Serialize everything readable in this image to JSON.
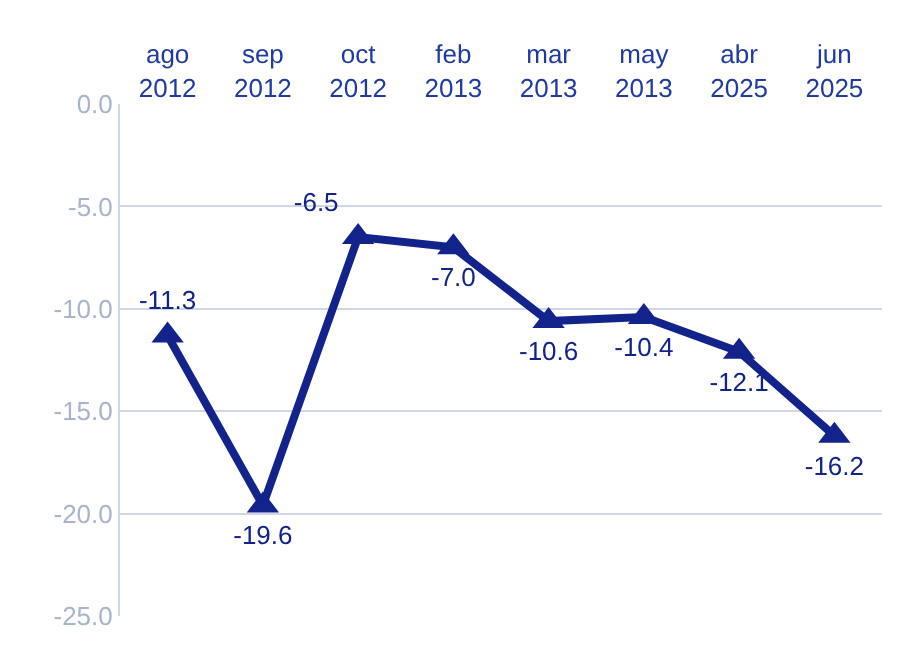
{
  "chart_data": {
    "type": "line",
    "categories": [
      "ago 2012",
      "sep 2012",
      "oct 2012",
      "feb 2013",
      "mar 2013",
      "may 2013",
      "abr 2025",
      "jun 2025"
    ],
    "series": [
      {
        "color": "#13238c",
        "values": [
          -11.3,
          -19.6,
          -6.5,
          -7.0,
          -10.6,
          -10.4,
          -12.1,
          -16.2
        ],
        "value_labels": [
          "-11.3",
          "-19.6",
          "-6.5",
          "-7.0",
          "-10.6",
          "-10.4",
          "-12.1",
          "-16.2"
        ]
      }
    ],
    "ylim": [
      -25,
      0
    ],
    "yticks": [
      {
        "value": 0,
        "label": "0.0"
      },
      {
        "value": -5,
        "label": "-5.0"
      },
      {
        "value": -10,
        "label": "-10.0"
      },
      {
        "value": -15,
        "label": "-15.0"
      },
      {
        "value": -20,
        "label": "-20.0"
      },
      {
        "value": -25,
        "label": "-25.0"
      }
    ],
    "grid": "y",
    "marker": "triangle",
    "line_style": "solid",
    "legend": false
  }
}
